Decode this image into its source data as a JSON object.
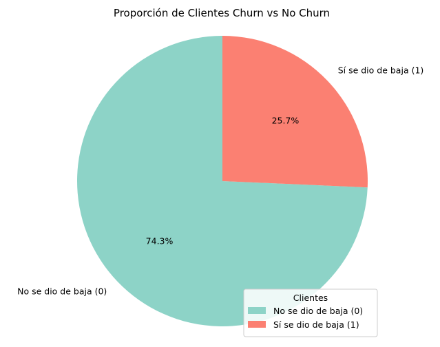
{
  "chart_data": {
    "type": "pie",
    "title": "Proporción de Clientes Churn vs No Churn",
    "slices": [
      {
        "label": "No se dio de baja (0)",
        "value": 74.3,
        "pct_label": "74.3%",
        "color": "#8dd3c7"
      },
      {
        "label": "Sí se dio de baja (1)",
        "value": 25.7,
        "pct_label": "25.7%",
        "color": "#fb8072"
      }
    ],
    "legend": {
      "title": "Clientes",
      "placement": "lower-right",
      "entries": [
        "No se dio de baja (0)",
        "Sí se dio de baja (1)"
      ]
    },
    "start_angle_deg": 90,
    "direction": "counterclockwise"
  }
}
